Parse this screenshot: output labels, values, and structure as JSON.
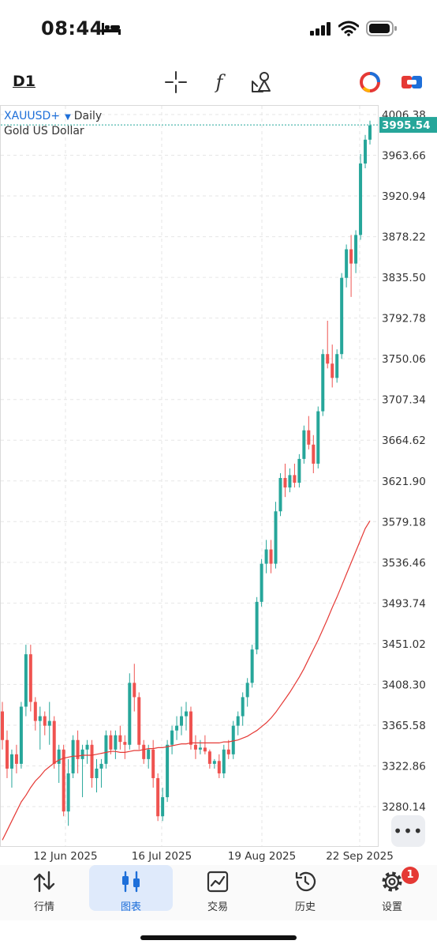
{
  "status_bar": {
    "time": "08:44"
  },
  "toolbar": {
    "timeframe": "D1",
    "indicator_symbol": "f"
  },
  "chart": {
    "symbol": "XAUUSD+",
    "timeframe_label": "Daily",
    "description": "Gold US Dollar",
    "current_price": "3995.54",
    "more_label": "•••"
  },
  "chart_data": {
    "type": "candlestick",
    "title": "XAUUSD+ Daily",
    "price_scale_labels": [
      "4006.38",
      "3963.66",
      "3920.94",
      "3878.22",
      "3835.50",
      "3792.78",
      "3750.06",
      "3707.34",
      "3664.62",
      "3621.90",
      "3579.18",
      "3536.46",
      "3493.74",
      "3451.02",
      "3408.30",
      "3365.58",
      "3322.86",
      "3280.14"
    ],
    "ylim": [
      3250,
      4020
    ],
    "date_labels": [
      "12 Jun 2025",
      "16 Jul 2025",
      "19 Aug 2025",
      "22 Sep 2025"
    ],
    "current_price": 3995.54,
    "up_color": "#26a69a",
    "down_color": "#ef5350",
    "ma_color": "#e53935",
    "series": [
      {
        "name": "candles",
        "ohlc": [
          [
            3380,
            3390,
            3340,
            3350
          ],
          [
            3350,
            3360,
            3310,
            3320
          ],
          [
            3320,
            3340,
            3300,
            3335
          ],
          [
            3335,
            3345,
            3315,
            3325
          ],
          [
            3325,
            3390,
            3320,
            3385
          ],
          [
            3385,
            3450,
            3375,
            3440
          ],
          [
            3440,
            3450,
            3380,
            3390
          ],
          [
            3390,
            3395,
            3360,
            3370
          ],
          [
            3370,
            3385,
            3340,
            3375
          ],
          [
            3375,
            3380,
            3355,
            3365
          ],
          [
            3365,
            3390,
            3345,
            3370
          ],
          [
            3370,
            3375,
            3320,
            3325
          ],
          [
            3325,
            3345,
            3305,
            3340
          ],
          [
            3340,
            3345,
            3270,
            3275
          ],
          [
            3275,
            3330,
            3260,
            3315
          ],
          [
            3315,
            3355,
            3310,
            3350
          ],
          [
            3350,
            3360,
            3315,
            3330
          ],
          [
            3330,
            3345,
            3290,
            3340
          ],
          [
            3340,
            3350,
            3325,
            3345
          ],
          [
            3345,
            3350,
            3300,
            3310
          ],
          [
            3310,
            3330,
            3295,
            3320
          ],
          [
            3320,
            3330,
            3300,
            3325
          ],
          [
            3325,
            3360,
            3320,
            3355
          ],
          [
            3355,
            3360,
            3335,
            3340
          ],
          [
            3340,
            3360,
            3330,
            3355
          ],
          [
            3355,
            3365,
            3340,
            3348
          ],
          [
            3348,
            3355,
            3330,
            3345
          ],
          [
            3345,
            3420,
            3340,
            3410
          ],
          [
            3410,
            3430,
            3380,
            3395
          ],
          [
            3395,
            3400,
            3340,
            3345
          ],
          [
            3345,
            3350,
            3325,
            3330
          ],
          [
            3330,
            3345,
            3320,
            3340
          ],
          [
            3340,
            3350,
            3300,
            3310
          ],
          [
            3310,
            3315,
            3265,
            3270
          ],
          [
            3270,
            3300,
            3265,
            3290
          ],
          [
            3290,
            3350,
            3285,
            3345
          ],
          [
            3345,
            3365,
            3335,
            3360
          ],
          [
            3360,
            3375,
            3350,
            3365
          ],
          [
            3365,
            3385,
            3355,
            3375
          ],
          [
            3375,
            3390,
            3360,
            3380
          ],
          [
            3380,
            3385,
            3340,
            3345
          ],
          [
            3345,
            3355,
            3330,
            3340
          ],
          [
            3340,
            3350,
            3335,
            3342
          ],
          [
            3342,
            3355,
            3335,
            3338
          ],
          [
            3338,
            3340,
            3320,
            3325
          ],
          [
            3325,
            3330,
            3320,
            3328
          ],
          [
            3328,
            3335,
            3310,
            3315
          ],
          [
            3315,
            3345,
            3310,
            3340
          ],
          [
            3340,
            3350,
            3330,
            3335
          ],
          [
            3335,
            3370,
            3330,
            3365
          ],
          [
            3365,
            3380,
            3355,
            3375
          ],
          [
            3375,
            3400,
            3365,
            3395
          ],
          [
            3395,
            3415,
            3385,
            3410
          ],
          [
            3410,
            3450,
            3405,
            3445
          ],
          [
            3445,
            3500,
            3440,
            3495
          ],
          [
            3495,
            3540,
            3490,
            3535
          ],
          [
            3535,
            3560,
            3525,
            3550
          ],
          [
            3550,
            3560,
            3525,
            3535
          ],
          [
            3535,
            3600,
            3530,
            3590
          ],
          [
            3590,
            3630,
            3585,
            3625
          ],
          [
            3625,
            3640,
            3605,
            3615
          ],
          [
            3615,
            3635,
            3610,
            3628
          ],
          [
            3628,
            3640,
            3615,
            3620
          ],
          [
            3620,
            3650,
            3615,
            3645
          ],
          [
            3645,
            3680,
            3640,
            3675
          ],
          [
            3675,
            3690,
            3655,
            3660
          ],
          [
            3660,
            3670,
            3630,
            3640
          ],
          [
            3640,
            3700,
            3635,
            3695
          ],
          [
            3695,
            3760,
            3690,
            3755
          ],
          [
            3755,
            3790,
            3740,
            3745
          ],
          [
            3745,
            3765,
            3720,
            3730
          ],
          [
            3730,
            3760,
            3725,
            3755
          ],
          [
            3755,
            3840,
            3750,
            3835
          ],
          [
            3835,
            3870,
            3825,
            3865
          ],
          [
            3865,
            3880,
            3815,
            3850
          ],
          [
            3850,
            3885,
            3840,
            3880
          ],
          [
            3880,
            3965,
            3875,
            3955
          ],
          [
            3955,
            3985,
            3950,
            3980
          ],
          [
            3980,
            4000,
            3975,
            3995
          ]
        ]
      },
      {
        "name": "MA",
        "values": [
          3245,
          3255,
          3265,
          3275,
          3285,
          3292,
          3300,
          3307,
          3312,
          3318,
          3322,
          3326,
          3329,
          3331,
          3332,
          3333,
          3333,
          3334,
          3334,
          3334,
          3335,
          3336,
          3337,
          3338,
          3338,
          3337,
          3337,
          3338,
          3339,
          3339,
          3340,
          3341,
          3341,
          3342,
          3342,
          3343,
          3344,
          3345,
          3346,
          3346,
          3347,
          3347,
          3347,
          3347,
          3347,
          3347,
          3347,
          3348,
          3348,
          3349,
          3350,
          3352,
          3354,
          3357,
          3360,
          3364,
          3368,
          3373,
          3379,
          3386,
          3393,
          3400,
          3408,
          3416,
          3425,
          3435,
          3445,
          3455,
          3466,
          3477,
          3489,
          3500,
          3512,
          3524,
          3536,
          3548,
          3560,
          3572,
          3580
        ]
      }
    ]
  },
  "bottom_nav": {
    "items": [
      {
        "label": "行情"
      },
      {
        "label": "图表"
      },
      {
        "label": "交易"
      },
      {
        "label": "历史"
      },
      {
        "label": "设置"
      }
    ],
    "settings_badge": "1",
    "active_color": "#1e6fd9"
  }
}
